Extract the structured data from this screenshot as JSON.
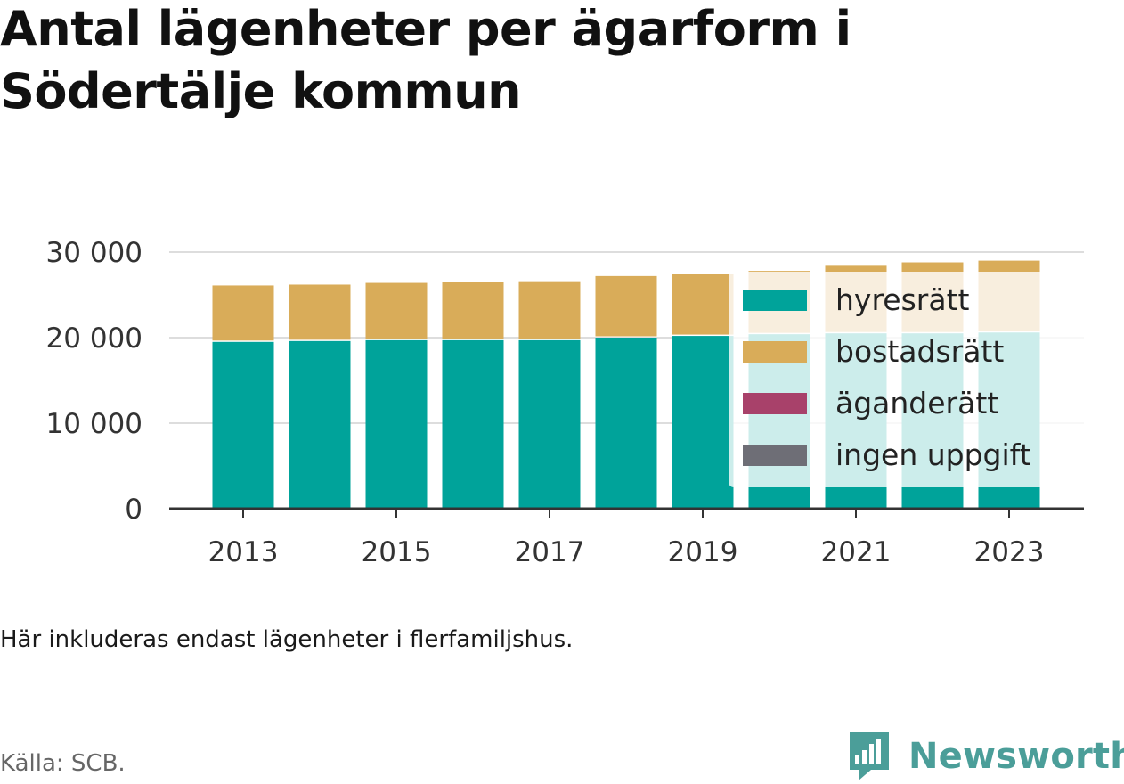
{
  "title": "Antal lägenheter per ägarform i Södertälje kommun",
  "note": "Här inkluderas endast lägenheter i flerfamiljshus.",
  "source": "Källa: SCB.",
  "brand": "Newsworthy",
  "chart_data": {
    "type": "bar",
    "stacked": true,
    "x": [
      2013,
      2014,
      2015,
      2016,
      2017,
      2018,
      2019,
      2020,
      2021,
      2022,
      2023
    ],
    "x_tick_labels": [
      "2013",
      "2015",
      "2017",
      "2019",
      "2021",
      "2023"
    ],
    "y_tick_labels": [
      "0",
      "10 000",
      "20 000",
      "30 000"
    ],
    "y_ticks": [
      0,
      10000,
      20000,
      30000
    ],
    "ylim": [
      0,
      30000
    ],
    "grid": true,
    "legend_position": "top-right, inside",
    "series": [
      {
        "name": "hyresrätt",
        "color": "#00a39a",
        "values": [
          19500,
          19600,
          19700,
          19700,
          19700,
          20000,
          20200,
          20400,
          20500,
          20500,
          20600
        ]
      },
      {
        "name": "bostadsrätt",
        "color": "#d9ac59",
        "values": [
          6600,
          6600,
          6700,
          6800,
          6900,
          7200,
          7300,
          7400,
          7900,
          8300,
          8400
        ]
      },
      {
        "name": "äganderätt",
        "color": "#a8416a",
        "values": [
          0,
          0,
          0,
          0,
          0,
          0,
          0,
          0,
          0,
          0,
          0
        ]
      },
      {
        "name": "ingen uppgift",
        "color": "#6e6e76",
        "values": [
          0,
          0,
          0,
          0,
          0,
          0,
          0,
          0,
          0,
          0,
          0
        ]
      }
    ]
  }
}
